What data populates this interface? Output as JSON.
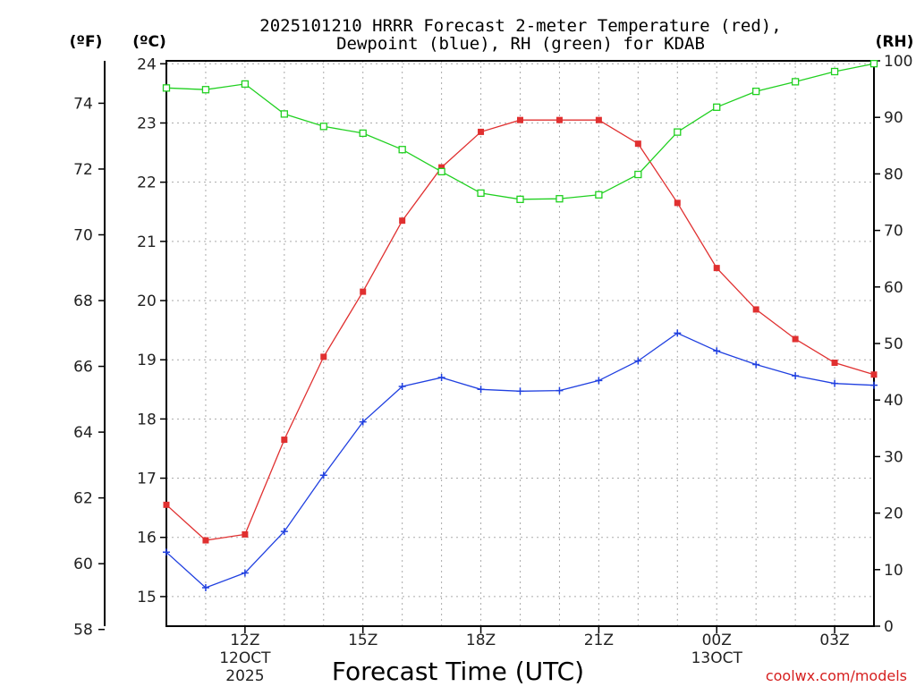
{
  "chart_data": {
    "type": "line",
    "title_line1": "2025101210 HRRR Forecast 2-meter Temperature (red),",
    "title_line2": "Dewpoint (blue), RH (green) for KDAB",
    "xlabel": "Forecast Time (UTC)",
    "credit": "coolwx.com/models",
    "units": {
      "fahrenheit": "(ºF)",
      "celsius": "(ºC)",
      "rh": "(RH)"
    },
    "x_hours": [
      10,
      11,
      12,
      13,
      14,
      15,
      16,
      17,
      18,
      19,
      20,
      21,
      22,
      23,
      24,
      25,
      26,
      27,
      28
    ],
    "x_ticks": [
      {
        "hour": 12,
        "label": "12Z",
        "sub1": "12OCT",
        "sub2": "2025"
      },
      {
        "hour": 15,
        "label": "15Z"
      },
      {
        "hour": 18,
        "label": "18Z"
      },
      {
        "hour": 21,
        "label": "21Z"
      },
      {
        "hour": 24,
        "label": "00Z",
        "sub1": "13OCT"
      },
      {
        "hour": 27,
        "label": "03Z"
      }
    ],
    "x_range": [
      10,
      28
    ],
    "celsius_axis": {
      "range": [
        14.5,
        24.05
      ],
      "ticks": [
        15,
        16,
        17,
        18,
        19,
        20,
        21,
        22,
        23,
        24
      ]
    },
    "fahrenheit_axis": {
      "ticks": [
        58,
        60,
        62,
        64,
        66,
        68,
        70,
        72,
        74
      ]
    },
    "rh_axis": {
      "range": [
        0,
        100
      ],
      "ticks": [
        0,
        10,
        20,
        30,
        40,
        50,
        60,
        70,
        80,
        90,
        100
      ]
    },
    "series": [
      {
        "name": "Temperature",
        "color": "#e03030",
        "marker": "filled-square",
        "axis": "celsius",
        "values": [
          16.55,
          15.95,
          16.05,
          17.65,
          19.05,
          20.15,
          21.35,
          22.25,
          22.85,
          23.05,
          23.05,
          23.05,
          22.65,
          21.65,
          20.55,
          19.85,
          19.35,
          18.95,
          18.75
        ]
      },
      {
        "name": "Dewpoint",
        "color": "#2040e0",
        "marker": "plus",
        "axis": "celsius",
        "values": [
          15.75,
          15.15,
          15.4,
          16.1,
          17.05,
          17.95,
          18.55,
          18.7,
          18.5,
          18.47,
          18.48,
          18.65,
          18.98,
          19.45,
          19.15,
          18.92,
          18.73,
          18.6,
          18.57
        ]
      },
      {
        "name": "RH",
        "color": "#20d020",
        "marker": "open-square",
        "axis": "rh",
        "values": [
          95.2,
          94.9,
          95.9,
          90.6,
          88.4,
          87.2,
          84.3,
          80.4,
          76.6,
          75.5,
          75.6,
          76.3,
          79.9,
          87.4,
          91.8,
          94.6,
          96.3,
          98.1,
          99.5
        ]
      }
    ]
  }
}
